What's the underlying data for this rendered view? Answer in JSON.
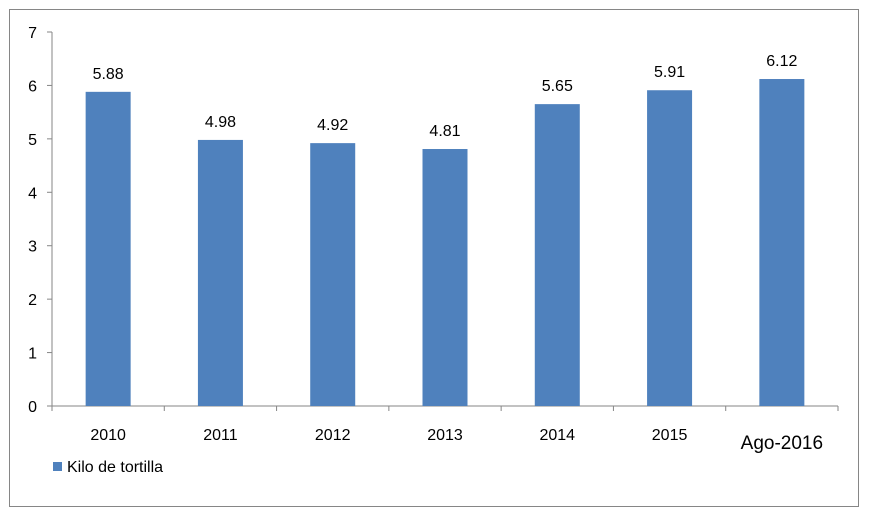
{
  "chart_data": {
    "type": "bar",
    "categories": [
      "2010",
      "2011",
      "2012",
      "2013",
      "2014",
      "2015",
      "Ago-2016"
    ],
    "series": [
      {
        "name": "Kilo de tortilla",
        "values": [
          5.88,
          4.98,
          4.92,
          4.81,
          5.65,
          5.91,
          6.12
        ],
        "color": "#4F81BD"
      }
    ],
    "data_labels": [
      "5.88",
      "4.98",
      "4.92",
      "4.81",
      "5.65",
      "5.91",
      "6.12"
    ],
    "y_ticks": [
      "0",
      "1",
      "2",
      "3",
      "4",
      "5",
      "6",
      "7"
    ],
    "ylim": [
      0,
      7
    ],
    "grid": false,
    "legend_position": "bottom-left",
    "title": "",
    "xlabel": "",
    "ylabel": ""
  }
}
